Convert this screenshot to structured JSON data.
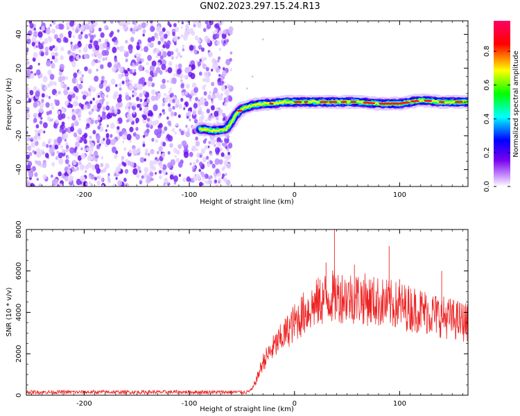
{
  "title": "GN02.2023.297.15.24.R13",
  "chart_data": [
    {
      "type": "heatmap",
      "xlabel": "Height of straight line (km)",
      "ylabel": "Frequency (Hz)",
      "xlim": [
        -255,
        165
      ],
      "ylim": [
        -50,
        48
      ],
      "xticks": [
        -200,
        -100,
        0,
        100
      ],
      "yticks": [
        -40,
        -20,
        0,
        20,
        40
      ],
      "colorbar": {
        "label": "Normalized spectral amplitude",
        "range": [
          0,
          1
        ],
        "ticks": [
          "0.0",
          "0.2",
          "0.4",
          "0.6",
          "0.8"
        ],
        "colormap": [
          "#ffffff",
          "#cc99ff",
          "#7700ee",
          "#0000ff",
          "#00ffff",
          "#00ff00",
          "#ffff00",
          "#ff0000",
          "#ff0066"
        ]
      },
      "noise_region": {
        "x": [
          -255,
          -60
        ],
        "y": [
          -50,
          48
        ]
      },
      "signal_trace": {
        "x": [
          -90,
          -75,
          -65,
          -60,
          -55,
          -50,
          -45,
          -40,
          -30,
          -20,
          -10,
          0,
          10,
          20,
          40,
          60,
          80,
          100,
          120,
          140,
          165
        ],
        "y": [
          -16,
          -17,
          -16,
          -12,
          -7,
          -4,
          -3,
          -2,
          -1,
          -1,
          0,
          0,
          0,
          0,
          0,
          0,
          -1,
          -1,
          1,
          0,
          0
        ]
      }
    },
    {
      "type": "line",
      "xlabel": "Height of straight line (km)",
      "ylabel": "SNR (10 * v/v)",
      "xlim": [
        -255,
        165
      ],
      "ylim": [
        0,
        8000
      ],
      "xticks": [
        -200,
        -100,
        0,
        100
      ],
      "yticks": [
        0,
        2000,
        4000,
        6000,
        8000
      ],
      "series": [
        {
          "color": "#ee2222",
          "envelope_x": [
            -255,
            -100,
            -45,
            -40,
            -35,
            -30,
            -20,
            -10,
            0,
            10,
            20,
            30,
            40,
            50,
            60,
            80,
            100,
            120,
            140,
            165
          ],
          "envelope_y": [
            150,
            150,
            150,
            300,
            900,
            1600,
            2300,
            2900,
            3500,
            4000,
            4400,
            4700,
            4800,
            4750,
            4700,
            4500,
            4300,
            4100,
            3800,
            3500
          ]
        }
      ]
    }
  ]
}
